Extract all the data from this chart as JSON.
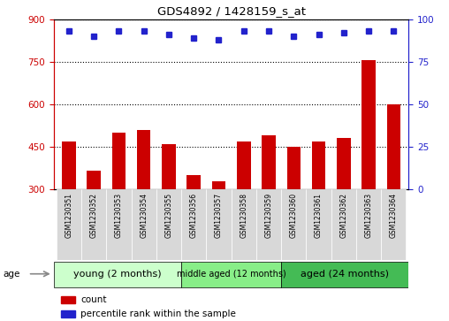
{
  "title": "GDS4892 / 1428159_s_at",
  "samples": [
    "GSM1230351",
    "GSM1230352",
    "GSM1230353",
    "GSM1230354",
    "GSM1230355",
    "GSM1230356",
    "GSM1230357",
    "GSM1230358",
    "GSM1230359",
    "GSM1230360",
    "GSM1230361",
    "GSM1230362",
    "GSM1230363",
    "GSM1230364"
  ],
  "counts": [
    470,
    365,
    500,
    510,
    460,
    350,
    330,
    470,
    490,
    450,
    470,
    480,
    755,
    600
  ],
  "percentiles": [
    93,
    90,
    93,
    93,
    91,
    89,
    88,
    93,
    93,
    90,
    91,
    92,
    93,
    93
  ],
  "ylim_left": [
    300,
    900
  ],
  "ylim_right": [
    0,
    100
  ],
  "yticks_left": [
    300,
    450,
    600,
    750,
    900
  ],
  "yticks_right": [
    0,
    25,
    50,
    75,
    100
  ],
  "bar_color": "#cc0000",
  "dot_color": "#2222cc",
  "bar_width": 0.55,
  "group_colors": [
    "#ccffcc",
    "#88ee88",
    "#44bb55"
  ],
  "groups": [
    {
      "label": "young (2 months)",
      "start": 0,
      "end": 4
    },
    {
      "label": "middle aged (12 months)",
      "start": 5,
      "end": 8
    },
    {
      "label": "aged (24 months)",
      "start": 9,
      "end": 13
    }
  ],
  "axis_color_left": "#cc0000",
  "axis_color_right": "#2222cc",
  "label_bg": "#d8d8d8",
  "plot_bg": "#ffffff",
  "fig_bg": "#ffffff"
}
